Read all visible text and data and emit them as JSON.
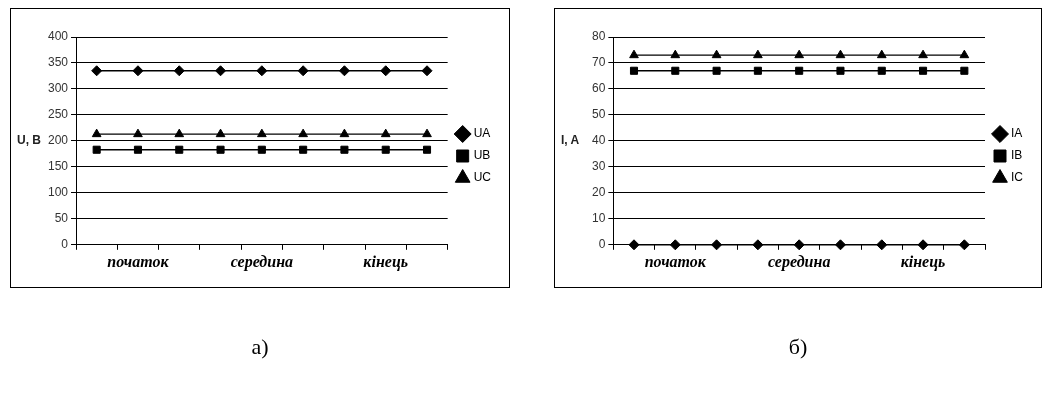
{
  "chart_data": [
    {
      "type": "line",
      "ylabel": "U, B",
      "categories": [
        null,
        "початок",
        null,
        null,
        "середина",
        null,
        null,
        "кінець",
        null
      ],
      "ylim": [
        0,
        400
      ],
      "yticks": [
        0,
        50,
        100,
        150,
        200,
        250,
        300,
        350,
        400
      ],
      "grid": "y",
      "legend": "right",
      "line_style": "solid",
      "annotations": [
        "а)"
      ],
      "series": [
        {
          "name": "UA",
          "color": "#000000",
          "marker": "diamond",
          "values": [
            335,
            335,
            335,
            335,
            335,
            335,
            335,
            335,
            335
          ]
        },
        {
          "name": "UB",
          "color": "#000000",
          "marker": "square",
          "values": [
            183,
            183,
            183,
            183,
            183,
            183,
            183,
            183,
            183
          ]
        },
        {
          "name": "UC",
          "color": "#000000",
          "marker": "triangle",
          "values": [
            213,
            213,
            213,
            213,
            213,
            213,
            213,
            213,
            213
          ]
        }
      ]
    },
    {
      "type": "line",
      "ylabel": "I, A",
      "categories": [
        null,
        "початок",
        null,
        null,
        "середина",
        null,
        null,
        "кінець",
        null
      ],
      "ylim": [
        0,
        80
      ],
      "yticks": [
        0,
        10,
        20,
        30,
        40,
        50,
        60,
        70,
        80
      ],
      "grid": "y",
      "legend": "right",
      "line_style": "solid",
      "annotations": [
        "б)"
      ],
      "series": [
        {
          "name": "IA",
          "color": "#000000",
          "marker": "diamond",
          "values": [
            0,
            0,
            0,
            0,
            0,
            0,
            0,
            0,
            0
          ]
        },
        {
          "name": "IB",
          "color": "#000000",
          "marker": "square",
          "values": [
            67,
            67,
            67,
            67,
            67,
            67,
            67,
            67,
            67
          ]
        },
        {
          "name": "IC",
          "color": "#000000",
          "marker": "triangle",
          "values": [
            73,
            73,
            73,
            73,
            73,
            73,
            73,
            73,
            73
          ]
        }
      ]
    }
  ]
}
